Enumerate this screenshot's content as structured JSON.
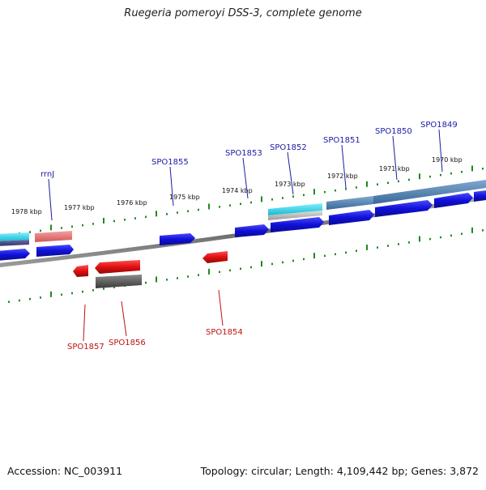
{
  "title": "Ruegeria pomeroyi DSS-3, complete genome",
  "footer": {
    "accession": "Accession: NC_003911",
    "topology": "Topology: circular; Length: 4,109,442 bp; Genes: 3,872"
  },
  "colors": {
    "forward_gene": "#1010d8",
    "reverse_gene": "#dd1010",
    "rrna": "#e87070",
    "trna": "#30d0e8",
    "operon": "#4c7fb0",
    "dark_feature": "#555555",
    "plus_label": "#1a1aa6",
    "minus_label": "#c01010",
    "tick": "#1f8a1f",
    "backbone": "#777777"
  },
  "kbp_labels": [
    "1978 kbp",
    "1977 kbp",
    "1976 kbp",
    "1975 kbp",
    "1974 kbp",
    "1973 kbp",
    "1972 kbp",
    "1971 kbp",
    "1970 kbp"
  ],
  "forward_labels": [
    "rrnJ",
    "SPO1855",
    "SPO1853",
    "SPO1852",
    "SPO1851",
    "SPO1850",
    "SPO1849"
  ],
  "reverse_labels": [
    "SPO1857",
    "SPO1856",
    "SPO1854"
  ]
}
